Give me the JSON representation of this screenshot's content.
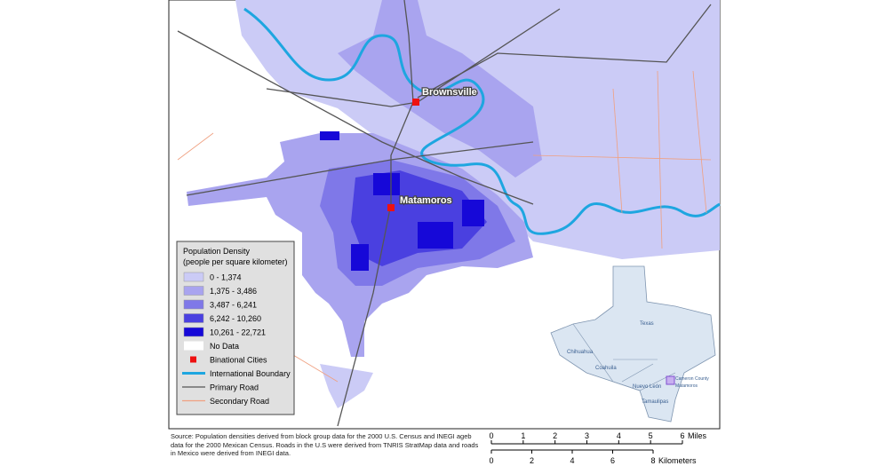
{
  "map": {
    "cities": [
      {
        "label": "Brownsville",
        "color": "#ee1111"
      },
      {
        "label": "Matamoros",
        "color": "#ee1111"
      }
    ],
    "legend": {
      "title": "Population Density",
      "subtitle": "(people per square kilometer)",
      "items": [
        {
          "label": "0 - 1,374",
          "color": "#cbcbf6",
          "symbol": "patch"
        },
        {
          "label": "1,375 - 3,486",
          "color": "#a9a4ef",
          "symbol": "patch"
        },
        {
          "label": "3,487 - 6,241",
          "color": "#7f78e8",
          "symbol": "patch"
        },
        {
          "label": "6,242 - 10,260",
          "color": "#4a40e0",
          "symbol": "patch"
        },
        {
          "label": "10,261 - 22,721",
          "color": "#1608d8",
          "symbol": "patch"
        },
        {
          "label": "No Data",
          "color": "#ffffff",
          "symbol": "patch"
        },
        {
          "label": "Binational Cities",
          "color": "#ee1111",
          "symbol": "square"
        },
        {
          "label": "International Boundary",
          "color": "#1ea6e0",
          "symbol": "thick-line"
        },
        {
          "label": "Primary Road",
          "color": "#555555",
          "symbol": "line"
        },
        {
          "label": "Secondary Road",
          "color": "#f0a080",
          "symbol": "line"
        }
      ]
    },
    "inset": {
      "labels": [
        "Texas",
        "Chihuahua",
        "Coahuila",
        "Nuevo León",
        "Tamaulipas",
        "Cameron County",
        "Matamoros"
      ]
    }
  },
  "source": "Source: Population densities derived from block group data for the 2000 U.S. Census and INEGI ageb data for the 2000 Mexican Census. Roads in the U.S were derived from TNRIS StratMap data and roads in Mexico were derived from INEGI data.",
  "scale": {
    "miles": {
      "ticks": [
        0,
        1,
        2,
        3,
        4,
        5,
        6
      ],
      "unit": "Miles"
    },
    "kilometers": {
      "ticks": [
        0,
        2,
        4,
        6,
        8
      ],
      "unit": "Kilometers"
    }
  }
}
